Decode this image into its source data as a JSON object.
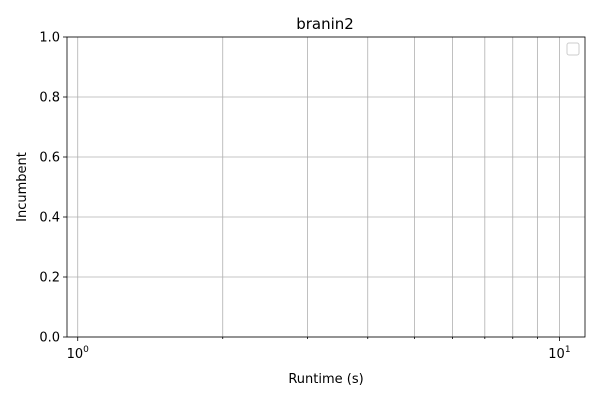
{
  "chart_data": {
    "type": "line",
    "title": "branin2",
    "xlabel": "Runtime (s)",
    "ylabel": "Incumbent",
    "x_scale": "log",
    "xlim": [
      0.95,
      11.3
    ],
    "ylim": [
      0,
      1
    ],
    "x_ticks": [
      {
        "value": 1,
        "base": "10",
        "exp": "0"
      },
      {
        "value": 10,
        "base": "10",
        "exp": "1"
      }
    ],
    "x_minor_ticks": [
      2,
      3,
      4,
      5,
      6,
      7,
      8,
      9
    ],
    "y_ticks": [
      {
        "value": 0.0,
        "label": "0.0"
      },
      {
        "value": 0.2,
        "label": "0.2"
      },
      {
        "value": 0.4,
        "label": "0.4"
      },
      {
        "value": 0.6,
        "label": "0.6"
      },
      {
        "value": 0.8,
        "label": "0.8"
      },
      {
        "value": 1.0,
        "label": "1.0"
      }
    ],
    "grid": true,
    "legend_placement": "top-right",
    "legend_entries": [],
    "series": [],
    "colors": {
      "grid": "#b0b0b0",
      "axis": "#000000",
      "background": "#ffffff",
      "legend_border": "#cccccc"
    }
  }
}
